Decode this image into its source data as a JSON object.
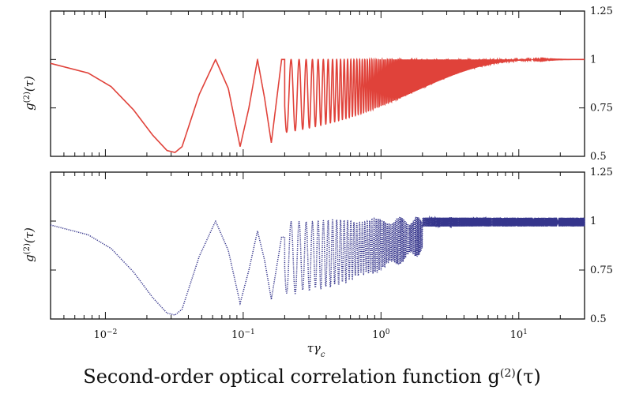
{
  "caption": "Second-order optical correlation function g(2)(τ)",
  "colors": {
    "top_series": "#e0423a",
    "bottom_series": "#35358c",
    "axes": "#111111"
  },
  "chart_data": [
    {
      "type": "line",
      "panel": "top",
      "title": "",
      "xlabel": "",
      "ylabel": "g(2)(τ)",
      "xscale": "log",
      "xlim": [
        0.004,
        30
      ],
      "ylim": [
        0.5,
        1.25
      ],
      "yticks": [
        "0.5",
        "0.75",
        "1",
        "1.25"
      ],
      "ytick_side": "right",
      "grid": false,
      "line_style": "solid",
      "model": "damped cosine oscillating between ~0.52 and 1.0, period ~0.032, envelope fading to 1 for tau >~ 4",
      "series": [
        {
          "x": [
            0.004,
            0.0075,
            0.011,
            0.016,
            0.022,
            0.028,
            0.032,
            0.036,
            0.048,
            0.063,
            0.078,
            0.095,
            0.11,
            0.127,
            0.143,
            0.16,
            0.19,
            0.25,
            0.32,
            0.5,
            0.8,
            1.2,
            2,
            3,
            5,
            10,
            30
          ],
          "values": [
            0.98,
            0.93,
            0.86,
            0.74,
            0.61,
            0.53,
            0.52,
            0.55,
            0.82,
            1.0,
            0.85,
            0.55,
            0.75,
            1.0,
            0.8,
            0.57,
            1.0,
            1.0,
            1.0,
            1.0,
            1.0,
            1.0,
            1.0,
            1.0,
            1.0,
            1.0,
            1.0
          ],
          "valleys": [
            [
              0.032,
              0.52
            ],
            [
              0.095,
              0.55
            ],
            [
              0.16,
              0.57
            ],
            [
              0.22,
              0.6
            ],
            [
              0.29,
              0.62
            ],
            [
              0.35,
              0.64
            ],
            [
              0.42,
              0.66
            ],
            [
              0.5,
              0.68
            ],
            [
              0.7,
              0.72
            ],
            [
              1.0,
              0.78
            ],
            [
              1.5,
              0.84
            ],
            [
              2.5,
              0.91
            ],
            [
              4,
              0.97
            ]
          ]
        }
      ]
    },
    {
      "type": "line",
      "panel": "bottom",
      "title": "",
      "xlabel": "τγc",
      "ylabel": "g(2)(τ)",
      "xscale": "log",
      "xlim": [
        0.004,
        30
      ],
      "ylim": [
        0.5,
        1.25
      ],
      "xticks": [
        {
          "value": 0.01,
          "base": "10",
          "exp": "−2"
        },
        {
          "value": 0.1,
          "base": "10",
          "exp": "−1"
        },
        {
          "value": 1,
          "base": "10",
          "exp": "0"
        },
        {
          "value": 10,
          "base": "10",
          "exp": "1"
        }
      ],
      "yticks": [
        "0.5",
        "0.75",
        "1",
        "1.25"
      ],
      "ytick_side": "right",
      "grid": false,
      "line_style": "dotted",
      "model": "same damped oscillation as top panel plus noise; peaks ~1.0 early, band widening to ~0.97–1.02 for tau > 2",
      "series": [
        {
          "x": [
            0.004,
            0.0075,
            0.011,
            0.016,
            0.022,
            0.028,
            0.032,
            0.036,
            0.048,
            0.063,
            0.078,
            0.095,
            0.11,
            0.127,
            0.143,
            0.16,
            0.19,
            0.25,
            0.32,
            0.5,
            0.8,
            1.2,
            2,
            3,
            5,
            10,
            30
          ],
          "values": [
            0.98,
            0.93,
            0.86,
            0.74,
            0.61,
            0.53,
            0.52,
            0.55,
            0.82,
            1.0,
            0.85,
            0.58,
            0.75,
            0.95,
            0.8,
            0.6,
            0.92,
            0.9,
            0.93,
            0.96,
            0.98,
            0.99,
            1.0,
            1.0,
            1.0,
            1.0,
            1.0
          ],
          "band_late": [
            0.97,
            1.02
          ]
        }
      ]
    }
  ]
}
